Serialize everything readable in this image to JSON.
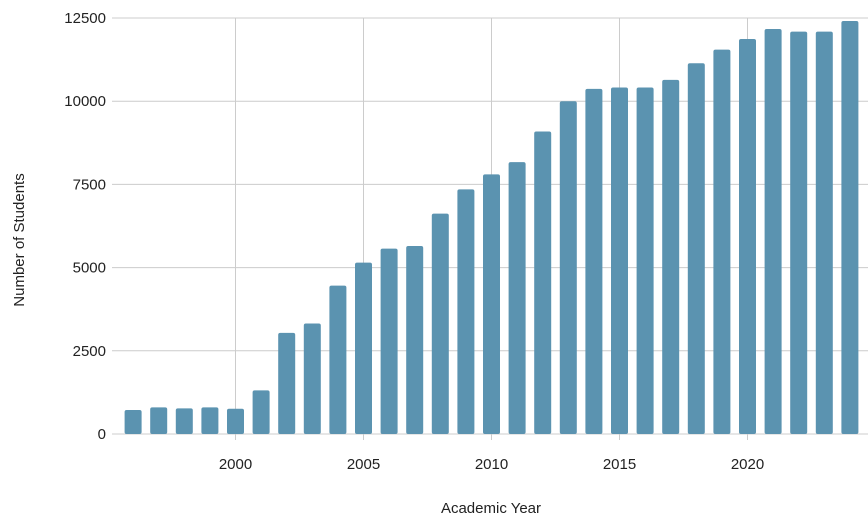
{
  "chart_data": {
    "type": "bar",
    "title": "",
    "xlabel": "Academic Year",
    "ylabel": "Number of Students",
    "x": [
      1996,
      1997,
      1998,
      1999,
      2000,
      2001,
      2002,
      2003,
      2004,
      2005,
      2006,
      2007,
      2008,
      2009,
      2010,
      2011,
      2012,
      2013,
      2014,
      2015,
      2016,
      2017,
      2018,
      2019,
      2020,
      2021,
      2022,
      2023,
      2024
    ],
    "values": [
      720,
      800,
      770,
      800,
      760,
      1310,
      3040,
      3320,
      4460,
      5150,
      5570,
      5650,
      6620,
      7350,
      7800,
      8170,
      9090,
      10000,
      10370,
      10410,
      10410,
      10640,
      11140,
      11550,
      11870,
      12170,
      12090,
      12090,
      12410
    ],
    "ylim": [
      0,
      12500
    ],
    "yticks": [
      "0",
      "2500",
      "5000",
      "7500",
      "10000",
      "12500"
    ],
    "xticks": [
      "2000",
      "2005",
      "2010",
      "2015",
      "2020"
    ],
    "grid": true,
    "bar_color": "#5b93b0",
    "grid_color": "#cccccc"
  }
}
